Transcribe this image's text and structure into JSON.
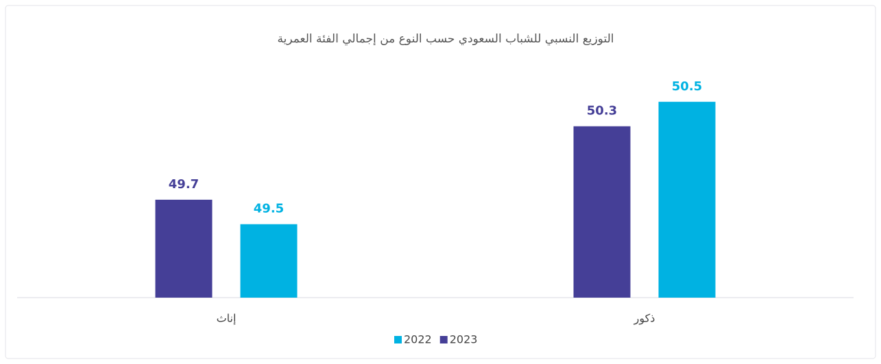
{
  "chart_data": {
    "type": "bar",
    "title": "التوزيع النسبي للشباب السعودي حسب النوع من إجمالي الفئة العمرية",
    "categories": [
      "ذكور",
      "إناث"
    ],
    "series": [
      {
        "name": "2023",
        "color": "#453f97",
        "values": [
          50.3,
          49.7
        ]
      },
      {
        "name": "2022",
        "color": "#00b2e2",
        "values": [
          50.5,
          49.5
        ]
      }
    ],
    "ylim": [
      48.9,
      50.7
    ]
  }
}
